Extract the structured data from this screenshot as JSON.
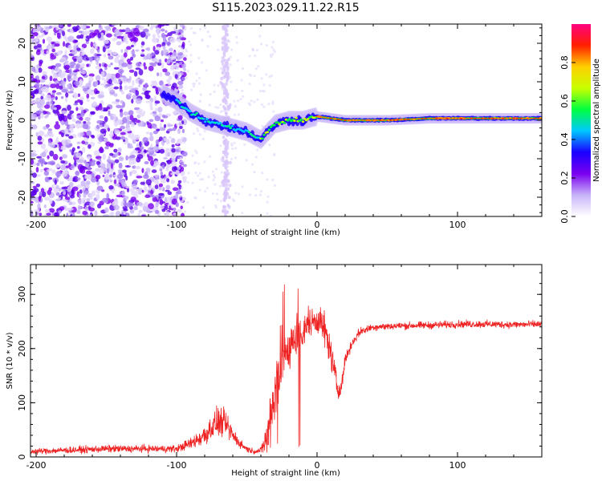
{
  "title": "S115.2023.029.11.22.R15",
  "chart_data": [
    {
      "type": "heatmap",
      "xlabel": "Height of straight line (km)",
      "ylabel": "Frequency (Hz)",
      "xlim": [
        -204,
        160
      ],
      "ylim": [
        -25,
        25
      ],
      "xticks": [
        -200,
        -100,
        0,
        100
      ],
      "yticks": [
        -20,
        -10,
        0,
        10,
        20
      ],
      "colorbar": {
        "label": "Normalized spectral amplitude",
        "range": [
          0.0,
          1.0
        ],
        "ticks": [
          0.0,
          0.2,
          0.4,
          0.6,
          0.8
        ],
        "tick_labels": [
          "0.0",
          "0.2",
          "0.4",
          "0.6",
          "0.8"
        ],
        "colors": [
          "#ffffff",
          "#c8b4f8",
          "#7a00f0",
          "#1a00ff",
          "#00c8ff",
          "#00ff40",
          "#c8ff00",
          "#ffd000",
          "#ff2000",
          "#ff0080"
        ]
      },
      "ridge": {
        "x": [
          -110,
          -100,
          -90,
          -80,
          -70,
          -60,
          -50,
          -40,
          -35,
          -30,
          -20,
          -10,
          0,
          20,
          50,
          80,
          100,
          130,
          160
        ],
        "y": [
          7,
          5,
          2,
          0,
          -1,
          -2,
          -3,
          -5,
          -3,
          -1,
          0,
          0,
          1,
          0,
          0,
          0.5,
          0.5,
          0.5,
          0.5
        ]
      }
    },
    {
      "type": "line",
      "xlabel": "Height of straight line (km)",
      "ylabel": "SNR (10 * v/v)",
      "xlim": [
        -204,
        160
      ],
      "ylim": [
        0,
        355
      ],
      "xticks": [
        -200,
        -100,
        0,
        100
      ],
      "yticks": [
        0,
        100,
        200,
        300
      ],
      "color": "#ee2222",
      "envelope": {
        "x": [
          -204,
          -150,
          -100,
          -90,
          -80,
          -75,
          -70,
          -65,
          -60,
          -55,
          -50,
          -45,
          -40,
          -35,
          -30,
          -25,
          -20,
          -15,
          -10,
          -5,
          0,
          5,
          10,
          15,
          18,
          20,
          25,
          30,
          35,
          40,
          60,
          80,
          100,
          120,
          140,
          160
        ],
        "y": [
          10,
          15,
          15,
          25,
          40,
          55,
          65,
          60,
          40,
          25,
          15,
          10,
          12,
          40,
          120,
          180,
          200,
          220,
          230,
          250,
          255,
          240,
          190,
          120,
          140,
          180,
          210,
          230,
          235,
          240,
          242,
          243,
          245,
          245,
          244,
          245
        ],
        "noise": [
          8,
          10,
          10,
          15,
          30,
          35,
          40,
          35,
          25,
          12,
          10,
          6,
          8,
          60,
          120,
          90,
          70,
          50,
          40,
          35,
          40,
          50,
          40,
          30,
          20,
          15,
          12,
          12,
          10,
          10,
          10,
          10,
          10,
          10,
          10,
          10
        ]
      }
    }
  ]
}
